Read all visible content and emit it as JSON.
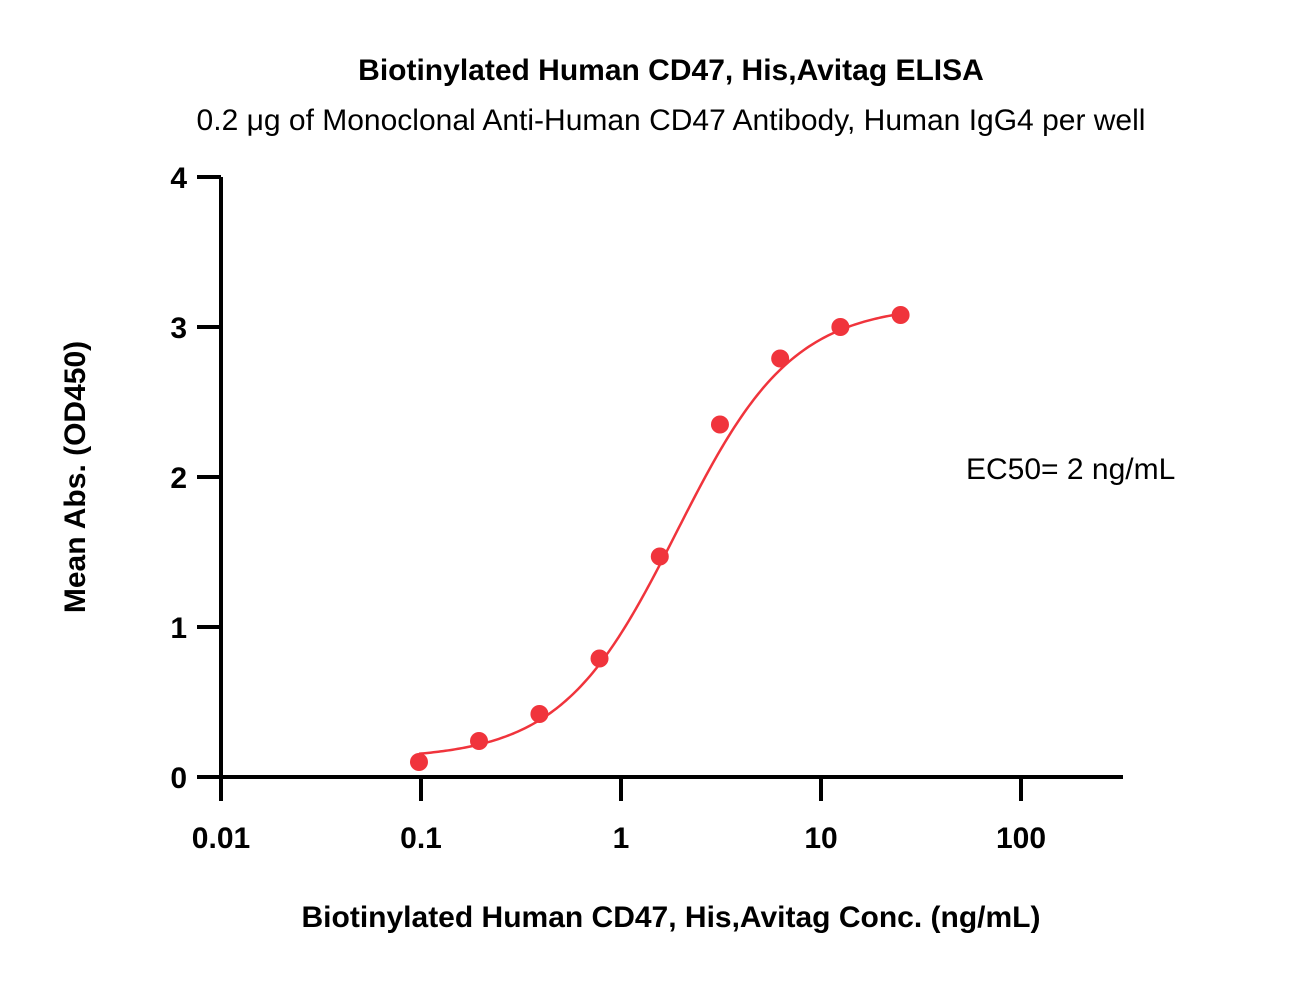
{
  "chart_data": {
    "type": "scatter",
    "title": "Biotinylated Human CD47, His,Avitag ELISA",
    "subtitle": "0.2 μg of Monoclonal Anti-Human CD47 Antibody, Human IgG4 per well",
    "xlabel": "Biotinylated Human CD47, His,Avitag Conc. (ng/mL)",
    "ylabel": "Mean Abs. (OD450)",
    "xscale": "log",
    "xlim": [
      0.01,
      300
    ],
    "ylim": [
      0,
      4
    ],
    "xticks": [
      0.01,
      0.1,
      1,
      10,
      100
    ],
    "xtick_labels": [
      "0.01",
      "0.1",
      "1",
      "10",
      "100"
    ],
    "yticks": [
      0,
      1,
      2,
      3,
      4
    ],
    "ytick_labels": [
      "0",
      "1",
      "2",
      "3",
      "4"
    ],
    "grid": false,
    "legend": "none",
    "color": "#f0343c",
    "series": [
      {
        "x": [
          0.0977,
          0.195,
          0.391,
          0.781,
          1.563,
          3.125,
          6.25,
          12.5,
          25
        ],
        "y": [
          0.1,
          0.24,
          0.42,
          0.79,
          1.47,
          2.35,
          2.79,
          3.0,
          3.08
        ]
      }
    ],
    "fit": {
      "type": "4PL",
      "bottom": 0.12,
      "top": 3.15,
      "ec50": 1.9,
      "hill": 1.5
    },
    "annotations": [
      {
        "text": "EC50= 2 ng/mL"
      }
    ]
  }
}
